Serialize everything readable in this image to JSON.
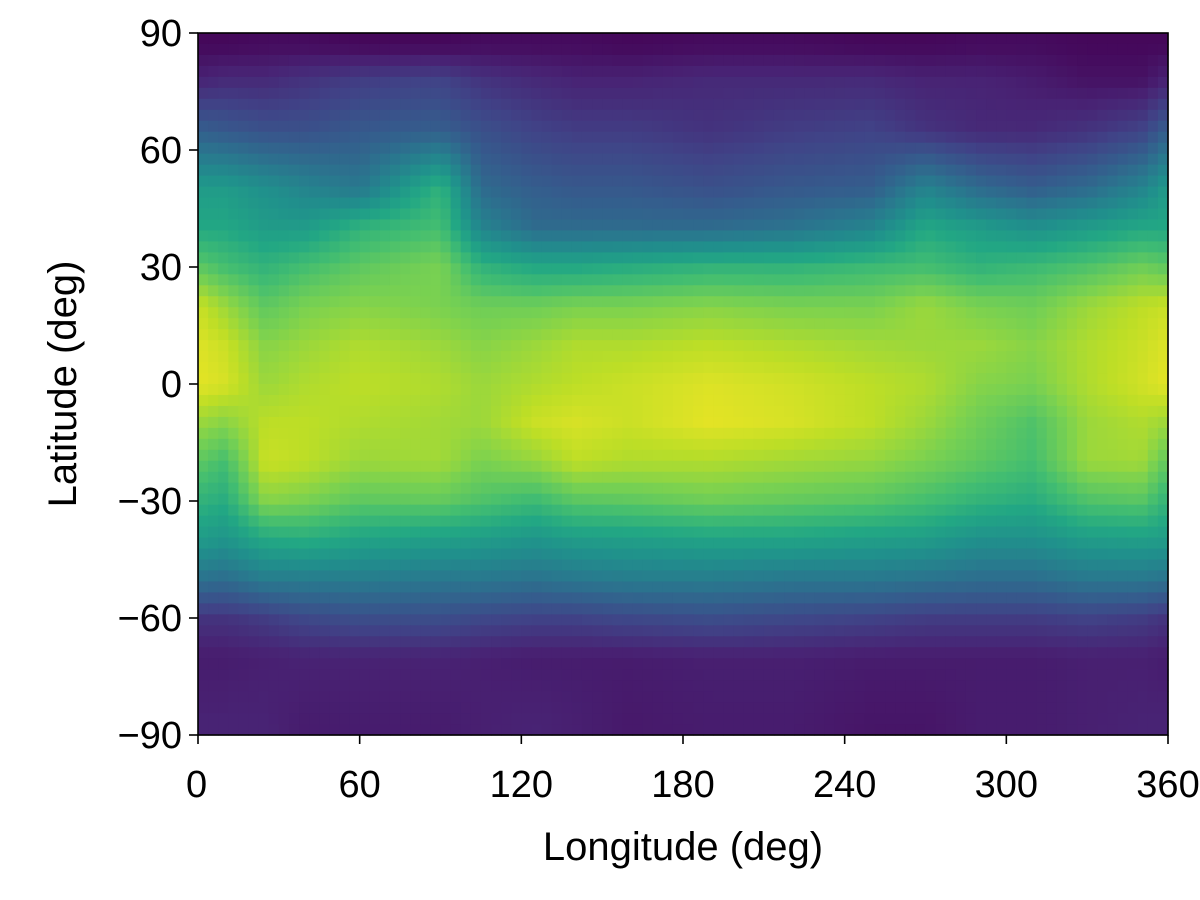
{
  "chart_data": {
    "type": "heatmap",
    "title": "",
    "xlabel": "Longitude (deg)",
    "ylabel": "Latitude (deg)",
    "xlim": [
      0,
      360
    ],
    "ylim": [
      -90,
      90
    ],
    "xticks": [
      0,
      60,
      120,
      180,
      240,
      300,
      360
    ],
    "xtick_labels": [
      "0",
      "60",
      "120",
      "180",
      "240",
      "300",
      "360"
    ],
    "yticks": [
      -90,
      -60,
      -30,
      0,
      30,
      60,
      90
    ],
    "ytick_labels": [
      "−90",
      "−60",
      "−30",
      "0",
      "30",
      "60",
      "90"
    ],
    "colormap": "viridis",
    "value_range": [
      0,
      1
    ],
    "grid": false,
    "legend": "none",
    "longitude_knots": [
      0,
      10,
      25,
      40,
      60,
      90,
      105,
      125,
      140,
      160,
      190,
      220,
      250,
      270,
      290,
      310,
      330,
      350,
      360
    ],
    "latitude_knots": [
      87,
      78,
      65,
      50,
      40,
      30,
      20,
      10,
      0,
      -10,
      -20,
      -30,
      -40,
      -50,
      -60,
      -70,
      -87
    ],
    "values": [
      [
        0.02,
        0.02,
        0.03,
        0.03,
        0.02,
        0.02,
        0.03,
        0.03,
        0.03,
        0.02,
        0.03,
        0.03,
        0.02,
        0.02,
        0.03,
        0.03,
        0.02,
        0.02,
        0.02
      ],
      [
        0.1,
        0.12,
        0.12,
        0.15,
        0.18,
        0.2,
        0.15,
        0.12,
        0.1,
        0.1,
        0.12,
        0.12,
        0.12,
        0.1,
        0.1,
        0.08,
        0.05,
        0.05,
        0.1
      ],
      [
        0.3,
        0.28,
        0.25,
        0.25,
        0.28,
        0.3,
        0.25,
        0.2,
        0.18,
        0.18,
        0.15,
        0.18,
        0.2,
        0.15,
        0.12,
        0.12,
        0.15,
        0.2,
        0.3
      ],
      [
        0.55,
        0.55,
        0.5,
        0.45,
        0.4,
        0.65,
        0.35,
        0.3,
        0.28,
        0.28,
        0.25,
        0.28,
        0.3,
        0.45,
        0.35,
        0.3,
        0.35,
        0.45,
        0.55
      ],
      [
        0.6,
        0.6,
        0.55,
        0.55,
        0.65,
        0.7,
        0.45,
        0.35,
        0.35,
        0.35,
        0.35,
        0.38,
        0.45,
        0.6,
        0.55,
        0.5,
        0.55,
        0.6,
        0.6
      ],
      [
        0.75,
        0.7,
        0.65,
        0.7,
        0.75,
        0.8,
        0.65,
        0.6,
        0.6,
        0.62,
        0.65,
        0.65,
        0.68,
        0.7,
        0.65,
        0.68,
        0.72,
        0.78,
        0.75
      ],
      [
        0.92,
        0.85,
        0.75,
        0.8,
        0.82,
        0.8,
        0.78,
        0.78,
        0.8,
        0.8,
        0.82,
        0.8,
        0.8,
        0.85,
        0.8,
        0.78,
        0.85,
        0.9,
        0.92
      ],
      [
        0.95,
        0.92,
        0.82,
        0.85,
        0.88,
        0.85,
        0.82,
        0.85,
        0.88,
        0.88,
        0.9,
        0.88,
        0.86,
        0.85,
        0.85,
        0.82,
        0.88,
        0.92,
        0.95
      ],
      [
        0.96,
        0.94,
        0.85,
        0.88,
        0.9,
        0.88,
        0.85,
        0.88,
        0.9,
        0.92,
        0.95,
        0.93,
        0.9,
        0.88,
        0.82,
        0.8,
        0.88,
        0.93,
        0.96
      ],
      [
        0.85,
        0.82,
        0.9,
        0.9,
        0.88,
        0.86,
        0.85,
        0.92,
        0.94,
        0.92,
        0.96,
        0.94,
        0.9,
        0.85,
        0.78,
        0.72,
        0.85,
        0.88,
        0.85
      ],
      [
        0.75,
        0.7,
        0.92,
        0.9,
        0.85,
        0.86,
        0.8,
        0.84,
        0.9,
        0.88,
        0.88,
        0.86,
        0.84,
        0.8,
        0.75,
        0.7,
        0.85,
        0.86,
        0.75
      ],
      [
        0.65,
        0.62,
        0.82,
        0.8,
        0.75,
        0.76,
        0.72,
        0.68,
        0.74,
        0.75,
        0.78,
        0.76,
        0.74,
        0.7,
        0.65,
        0.62,
        0.72,
        0.74,
        0.65
      ],
      [
        0.55,
        0.52,
        0.6,
        0.62,
        0.58,
        0.56,
        0.55,
        0.52,
        0.55,
        0.56,
        0.58,
        0.58,
        0.56,
        0.55,
        0.5,
        0.5,
        0.55,
        0.56,
        0.55
      ],
      [
        0.38,
        0.36,
        0.42,
        0.42,
        0.42,
        0.4,
        0.4,
        0.38,
        0.4,
        0.42,
        0.42,
        0.4,
        0.4,
        0.38,
        0.36,
        0.36,
        0.4,
        0.4,
        0.38
      ],
      [
        0.15,
        0.15,
        0.18,
        0.22,
        0.24,
        0.24,
        0.22,
        0.2,
        0.2,
        0.22,
        0.24,
        0.22,
        0.2,
        0.18,
        0.18,
        0.18,
        0.2,
        0.18,
        0.15
      ],
      [
        0.08,
        0.08,
        0.09,
        0.1,
        0.1,
        0.1,
        0.09,
        0.08,
        0.08,
        0.08,
        0.09,
        0.09,
        0.08,
        0.08,
        0.08,
        0.08,
        0.09,
        0.09,
        0.08
      ],
      [
        0.1,
        0.1,
        0.1,
        0.08,
        0.08,
        0.08,
        0.09,
        0.1,
        0.09,
        0.07,
        0.08,
        0.08,
        0.06,
        0.06,
        0.08,
        0.08,
        0.09,
        0.1,
        0.1
      ]
    ]
  }
}
